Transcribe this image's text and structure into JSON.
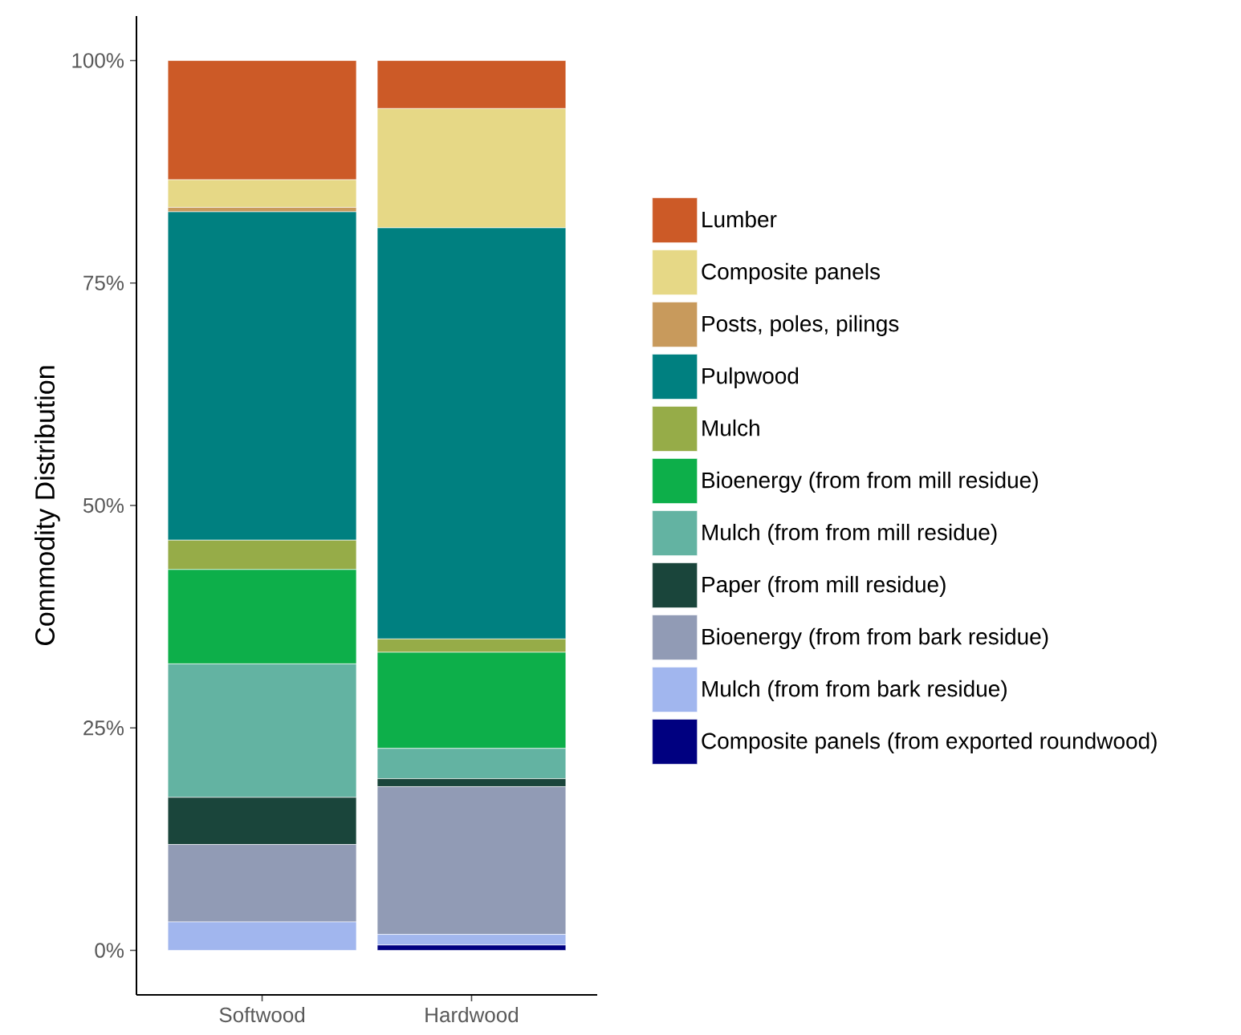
{
  "chart_data": {
    "type": "bar",
    "stacked": true,
    "ylabel": "Commodity Distribution",
    "categories": [
      "Softwood",
      "Hardwood"
    ],
    "ylim": [
      -5,
      105
    ],
    "yticks": [
      {
        "value": 0,
        "label": "0%"
      },
      {
        "value": 25,
        "label": "25%"
      },
      {
        "value": 50,
        "label": "50%"
      },
      {
        "value": 75,
        "label": "75%"
      },
      {
        "value": 100,
        "label": "100%"
      }
    ],
    "legend": "right",
    "series": [
      {
        "name": "Composite panels (from exported roundwood)",
        "color": "#000080",
        "values": [
          0,
          0.6
        ]
      },
      {
        "name": "Mulch (from from bark residue)",
        "color": "#a1b6ee",
        "values": [
          3.2,
          1.2
        ]
      },
      {
        "name": "Bioenergy (from from bark residue)",
        "color": "#919bb5",
        "values": [
          8.7,
          16.6
        ]
      },
      {
        "name": "Paper (from mill residue)",
        "color": "#1a453b",
        "values": [
          5.3,
          0.9
        ]
      },
      {
        "name": "Mulch (from from mill residue)",
        "color": "#63b3a2",
        "values": [
          15.0,
          3.4
        ]
      },
      {
        "name": "Bioenergy (from from mill residue)",
        "color": "#0daf4a",
        "values": [
          10.6,
          10.8
        ]
      },
      {
        "name": "Mulch",
        "color": "#96ac48",
        "values": [
          3.3,
          1.5
        ]
      },
      {
        "name": "Pulpwood",
        "color": "#008080",
        "values": [
          36.9,
          46.2
        ]
      },
      {
        "name": "Posts, poles, pilings",
        "color": "#c89a5c",
        "values": [
          0.5,
          0
        ]
      },
      {
        "name": "Composite panels",
        "color": "#e6d886",
        "values": [
          3.1,
          13.4
        ]
      },
      {
        "name": "Lumber",
        "color": "#cc5a27",
        "values": [
          13.4,
          5.4
        ]
      }
    ]
  }
}
